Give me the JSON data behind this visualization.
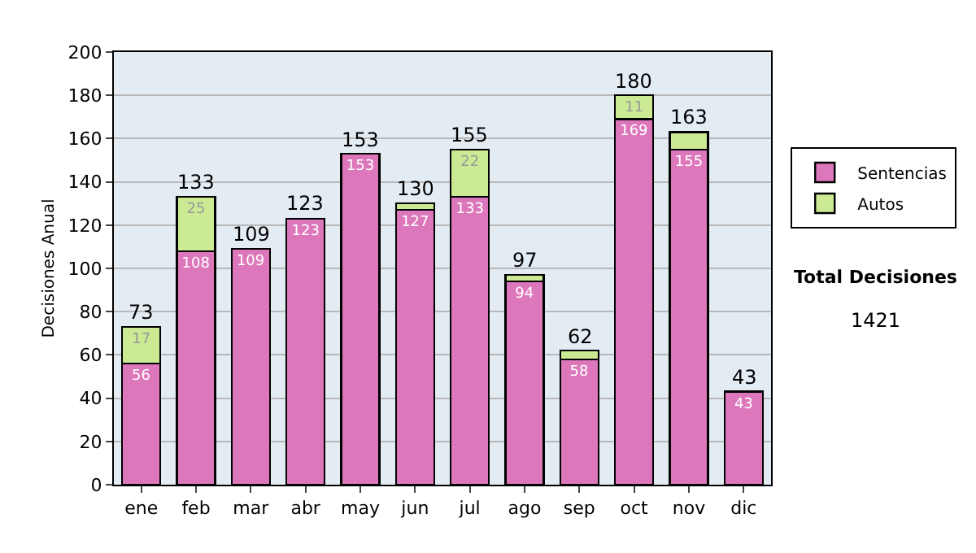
{
  "chart_data": {
    "type": "bar",
    "stacked": true,
    "ylabel": "Decisiones Anual",
    "categories": [
      "ene",
      "feb",
      "mar",
      "abr",
      "may",
      "jun",
      "jul",
      "ago",
      "sep",
      "oct",
      "nov",
      "dic"
    ],
    "series": [
      {
        "name": "Sentencias",
        "color": "#dd77bb",
        "values": [
          56,
          108,
          109,
          123,
          153,
          127,
          133,
          94,
          58,
          169,
          155,
          43
        ],
        "value_labels": [
          "56",
          "108",
          "109",
          "123",
          "153",
          "127",
          "133",
          "94",
          "58",
          "169",
          "155",
          "43"
        ]
      },
      {
        "name": "Autos",
        "color": "#ccea94",
        "values": [
          17,
          25,
          0,
          0,
          0,
          3,
          22,
          3,
          4,
          11,
          8,
          0
        ],
        "value_labels": [
          "17",
          "25",
          null,
          null,
          null,
          null,
          "22",
          null,
          null,
          "11",
          null,
          null
        ]
      }
    ],
    "totals": [
      "73",
      "133",
      "109",
      "123",
      "153",
      "130",
      "155",
      "97",
      "62",
      "180",
      "163",
      "43"
    ],
    "ylim": [
      0,
      200
    ],
    "yticks": [
      0,
      20,
      40,
      60,
      80,
      100,
      120,
      140,
      160,
      180,
      200
    ],
    "grid": "y",
    "legend": "right",
    "annotations": [
      "Total Decisiones",
      "1421"
    ]
  }
}
